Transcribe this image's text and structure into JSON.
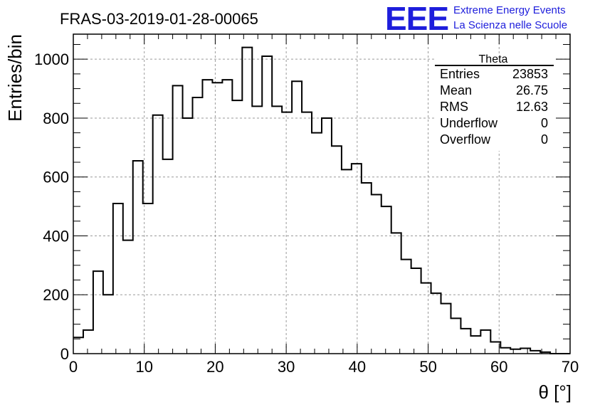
{
  "chart_data": {
    "type": "bar",
    "title": "FRAS-03-2019-01-28-00065",
    "xlabel": "θ [°]",
    "ylabel": "Entries/bin",
    "xlim": [
      0,
      70
    ],
    "ylim": [
      0,
      1085
    ],
    "grid": true,
    "bin_width": 1.4,
    "bin_edges_start": 0,
    "values": [
      55,
      80,
      280,
      200,
      510,
      385,
      655,
      510,
      810,
      660,
      910,
      800,
      870,
      930,
      920,
      930,
      860,
      1040,
      840,
      1010,
      840,
      820,
      925,
      820,
      750,
      800,
      705,
      625,
      645,
      580,
      540,
      500,
      410,
      320,
      290,
      240,
      205,
      170,
      120,
      85,
      60,
      80,
      40,
      20,
      15,
      18,
      10,
      5,
      0,
      0
    ],
    "x_ticks": [
      "0",
      "10",
      "20",
      "30",
      "40",
      "50",
      "60",
      "70"
    ],
    "y_ticks": [
      "0",
      "200",
      "400",
      "600",
      "800",
      "1000"
    ]
  },
  "stats_box": {
    "title": "Theta",
    "rows": [
      {
        "label": "Entries",
        "value": "23853"
      },
      {
        "label": "Mean",
        "value": "26.75"
      },
      {
        "label": "RMS",
        "value": "12.63"
      },
      {
        "label": "Underflow",
        "value": "0"
      },
      {
        "label": "Overflow",
        "value": "0"
      }
    ]
  },
  "logo": {
    "mark": "EEE",
    "line1": "Extreme Energy Events",
    "line2": "La Scienza nelle Scuole",
    "color": "#1e1edc"
  }
}
